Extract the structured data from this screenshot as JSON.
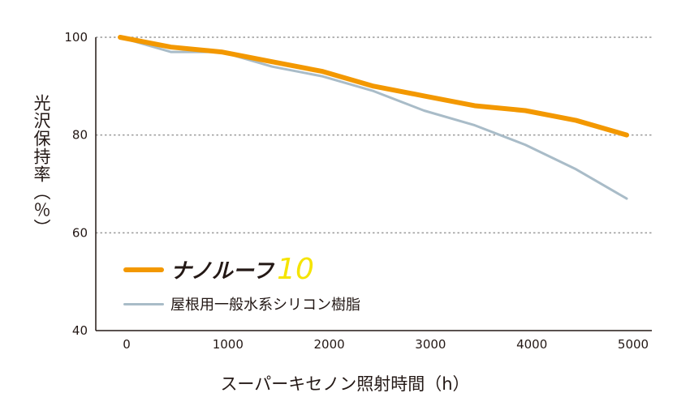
{
  "chart_data": {
    "type": "line",
    "title": "",
    "xlabel": "スーパーキセノン照射時間（h）",
    "ylabel": "光沢保持率（％）",
    "xlim": [
      0,
      5000
    ],
    "ylim": [
      40,
      100
    ],
    "xticks": [
      "0",
      "1000",
      "2000",
      "3000",
      "4000",
      "5000"
    ],
    "yticks": [
      "40",
      "60",
      "80",
      "100"
    ],
    "grid": "horizontal dotted",
    "legend_placement": "bottom-left",
    "x": [
      0,
      500,
      1000,
      1500,
      2000,
      2500,
      3000,
      3500,
      4000,
      4500,
      5000
    ],
    "series": [
      {
        "name": "ナノルーフ",
        "name_suffix": "10",
        "color": "#f39800",
        "values": [
          100,
          98,
          97,
          95,
          93,
          90,
          88,
          86,
          85,
          83,
          80
        ]
      },
      {
        "name": "屋根用一般水系シリコン樹脂",
        "color": "#a9bcc8",
        "values": [
          100,
          97,
          97,
          94,
          92,
          89,
          85,
          82,
          78,
          73,
          67
        ]
      }
    ]
  }
}
